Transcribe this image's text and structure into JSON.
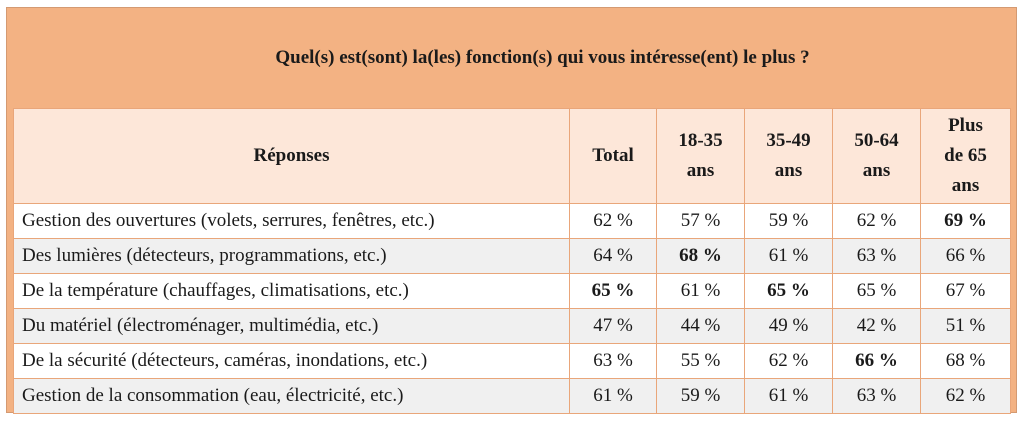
{
  "title": "Quel(s) est(sont) la(les) fonction(s) qui vous intéresse(ent) le plus ?",
  "headers": {
    "reponses": "Réponses",
    "total": "Total",
    "age1": [
      "18-35",
      "ans"
    ],
    "age2": [
      "35-49",
      "ans"
    ],
    "age3": [
      "50-64",
      "ans"
    ],
    "age4": [
      "Plus",
      "de 65",
      "ans"
    ]
  },
  "rows": [
    {
      "label": "Gestion des ouvertures (volets, serrures, fenêtres, etc.)",
      "values": [
        "62 %",
        "57 %",
        "59 %",
        "62 %",
        "69 %"
      ],
      "bold": [
        false,
        false,
        false,
        false,
        true
      ]
    },
    {
      "label": "Des lumières (détecteurs, programmations, etc.)",
      "values": [
        "64 %",
        "68 %",
        "61 %",
        "63 %",
        "66 %"
      ],
      "bold": [
        false,
        true,
        false,
        false,
        false
      ]
    },
    {
      "label": "De la température (chauffages, climatisations, etc.)",
      "values": [
        "65 %",
        "61 %",
        "65 %",
        "65 %",
        "67 %"
      ],
      "bold": [
        true,
        false,
        true,
        false,
        false
      ]
    },
    {
      "label": "Du matériel (électroménager, multimédia, etc.)",
      "values": [
        "47 %",
        "44 %",
        "49 %",
        "42 %",
        "51 %"
      ],
      "bold": [
        false,
        false,
        false,
        false,
        false
      ]
    },
    {
      "label": "De la sécurité (détecteurs, caméras, inondations, etc.)",
      "values": [
        "63 %",
        "55 %",
        "62 %",
        "66 %",
        "68 %"
      ],
      "bold": [
        false,
        false,
        false,
        true,
        false
      ]
    },
    {
      "label": "Gestion de la consommation (eau, électricité, etc.)",
      "values": [
        "61 %",
        "59 %",
        "61 %",
        "63 %",
        "62 %"
      ],
      "bold": [
        false,
        false,
        false,
        false,
        false
      ]
    }
  ]
}
